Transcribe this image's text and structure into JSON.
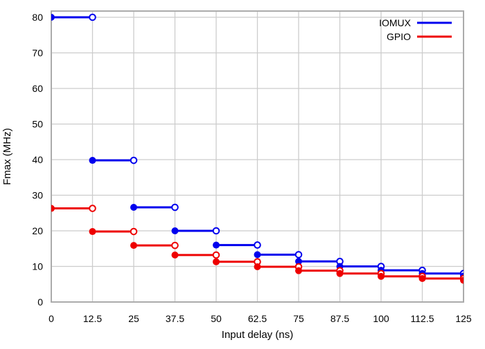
{
  "chart_data": {
    "type": "line",
    "subtype": "step-segments",
    "title": "",
    "xlabel": "Input delay (ns)",
    "ylabel": "Fmax (MHz)",
    "xlim": [
      0,
      125
    ],
    "ylim": [
      0,
      80
    ],
    "x_ticks": [
      0,
      12.5,
      25,
      37.5,
      50,
      62.5,
      75,
      87.5,
      100,
      112.5,
      125
    ],
    "x_tick_labels": [
      "0",
      "12.5",
      "25",
      "37.5",
      "50",
      "62.5",
      "75",
      "87.5",
      "100",
      "112.5",
      "125"
    ],
    "y_ticks": [
      0,
      10,
      20,
      30,
      40,
      50,
      60,
      70,
      80
    ],
    "y_tick_labels": [
      "0",
      "10",
      "20",
      "30",
      "40",
      "50",
      "60",
      "70",
      "80"
    ],
    "grid": true,
    "legend_position": "top-right-inside",
    "marker_style": {
      "segment_start": "filled-circle",
      "segment_end": "open-circle"
    },
    "series": [
      {
        "name": "IOMUX",
        "color": "#0000ee",
        "steps": [
          [
            0,
            12.5,
            80
          ],
          [
            12.5,
            25,
            39.8
          ],
          [
            25,
            37.5,
            26.6
          ],
          [
            37.5,
            50,
            20
          ],
          [
            50,
            62.5,
            16
          ],
          [
            62.5,
            75,
            13.3
          ],
          [
            75,
            87.5,
            11.4
          ],
          [
            87.5,
            100,
            10
          ],
          [
            100,
            112.5,
            8.9
          ],
          [
            112.5,
            125,
            8
          ]
        ],
        "end_point": [
          125,
          7.3
        ]
      },
      {
        "name": "GPIO",
        "color": "#ee0000",
        "steps": [
          [
            0,
            12.5,
            26.3
          ],
          [
            12.5,
            25,
            19.8
          ],
          [
            25,
            37.5,
            15.9
          ],
          [
            37.5,
            50,
            13.2
          ],
          [
            50,
            62.5,
            11.3
          ],
          [
            62.5,
            75,
            9.9
          ],
          [
            75,
            87.5,
            8.8
          ],
          [
            87.5,
            100,
            8
          ],
          [
            100,
            112.5,
            7.2
          ],
          [
            112.5,
            125,
            6.6
          ]
        ],
        "end_point": [
          125,
          6.1
        ]
      }
    ],
    "colors": {
      "grid": "#cccccc",
      "border": "#ababab",
      "text": "#000000",
      "background": "#ffffff"
    }
  }
}
